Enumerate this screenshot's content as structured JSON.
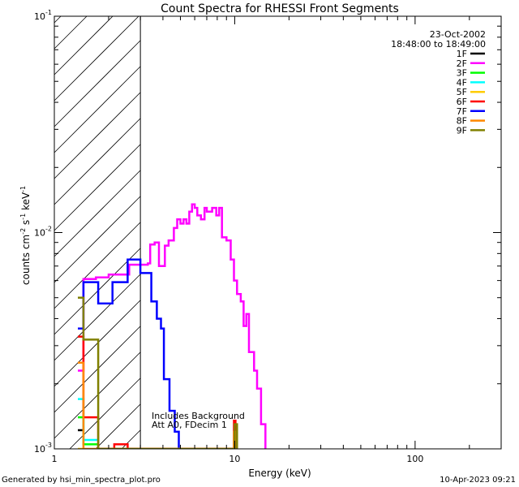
{
  "chart_data": {
    "type": "line",
    "title": "Count Spectra for RHESSI Front Segments",
    "xlabel": "Energy (keV)",
    "ylabel_main": "counts cm",
    "ylabel_sup1": "-2",
    "ylabel_mid": " s",
    "ylabel_sup2": "-1",
    "ylabel_mid2": " keV",
    "ylabel_sup3": "-1",
    "xscale": "log",
    "yscale": "log",
    "xlim": [
      1,
      300
    ],
    "ylim": [
      0.001,
      0.1
    ],
    "x_tick_labels": [
      {
        "value": 1,
        "label": "1"
      },
      {
        "value": 10,
        "label": "10"
      },
      {
        "value": 100,
        "label": "100"
      }
    ],
    "y_tick_labels": [
      {
        "value": 0.1,
        "base": "10",
        "exp": "-1"
      },
      {
        "value": 0.01,
        "base": "10",
        "exp": "-2"
      },
      {
        "value": 0.001,
        "base": "10",
        "exp": "-3"
      }
    ],
    "hatched_region": [
      1,
      3
    ],
    "date": "23-Oct-2002",
    "time_range": "18:48:00 to 18:49:00",
    "annotation_line1": "Includes Background",
    "annotation_line2": "Att A0, FDecim 1",
    "footer_left": "Generated by hsi_min_spectra_plot.pro",
    "footer_right": "10-Apr-2023 09:21",
    "legend": [
      {
        "name": "1F",
        "color": "#000000"
      },
      {
        "name": "2F",
        "color": "#ff00ff"
      },
      {
        "name": "3F",
        "color": "#00ff00"
      },
      {
        "name": "4F",
        "color": "#00ffff"
      },
      {
        "name": "5F",
        "color": "#ffcc00"
      },
      {
        "name": "6F",
        "color": "#ff0000"
      },
      {
        "name": "7F",
        "color": "#0000ff"
      },
      {
        "name": "8F",
        "color": "#ff8800"
      },
      {
        "name": "9F",
        "color": "#808000"
      }
    ],
    "series": [
      {
        "name": "1F",
        "color": "#000000",
        "points": [
          [
            1.35,
            0.00122
          ],
          [
            1.45,
            0.00122
          ]
        ]
      },
      {
        "name": "2F",
        "color": "#ff00ff",
        "points": [
          [
            1.35,
            0.0023
          ],
          [
            1.45,
            0.0023
          ],
          [
            1.45,
            0.0061
          ],
          [
            1.7,
            0.0061
          ],
          [
            1.7,
            0.0062
          ],
          [
            2.0,
            0.0062
          ],
          [
            2.0,
            0.0064
          ],
          [
            2.6,
            0.0064
          ],
          [
            2.6,
            0.0071
          ],
          [
            3.3,
            0.0071
          ],
          [
            3.3,
            0.0072
          ],
          [
            3.4,
            0.0072
          ],
          [
            3.4,
            0.0088
          ],
          [
            3.6,
            0.0088
          ],
          [
            3.6,
            0.009
          ],
          [
            3.8,
            0.009
          ],
          [
            3.8,
            0.007
          ],
          [
            4.1,
            0.007
          ],
          [
            4.1,
            0.0087
          ],
          [
            4.3,
            0.0087
          ],
          [
            4.3,
            0.0092
          ],
          [
            4.6,
            0.0092
          ],
          [
            4.6,
            0.0105
          ],
          [
            4.8,
            0.0105
          ],
          [
            4.8,
            0.0115
          ],
          [
            5.0,
            0.0115
          ],
          [
            5.0,
            0.011
          ],
          [
            5.2,
            0.011
          ],
          [
            5.2,
            0.0115
          ],
          [
            5.4,
            0.0115
          ],
          [
            5.4,
            0.011
          ],
          [
            5.6,
            0.011
          ],
          [
            5.6,
            0.0125
          ],
          [
            5.8,
            0.0125
          ],
          [
            5.8,
            0.0135
          ],
          [
            6.0,
            0.0135
          ],
          [
            6.0,
            0.013
          ],
          [
            6.2,
            0.013
          ],
          [
            6.2,
            0.012
          ],
          [
            6.5,
            0.012
          ],
          [
            6.5,
            0.0115
          ],
          [
            6.8,
            0.0115
          ],
          [
            6.8,
            0.013
          ],
          [
            7.0,
            0.013
          ],
          [
            7.0,
            0.0125
          ],
          [
            7.5,
            0.0125
          ],
          [
            7.5,
            0.013
          ],
          [
            7.9,
            0.013
          ],
          [
            7.9,
            0.012
          ],
          [
            8.2,
            0.012
          ],
          [
            8.2,
            0.013
          ],
          [
            8.5,
            0.013
          ],
          [
            8.5,
            0.0095
          ],
          [
            9.0,
            0.0095
          ],
          [
            9.0,
            0.0092
          ],
          [
            9.5,
            0.0092
          ],
          [
            9.5,
            0.0075
          ],
          [
            9.9,
            0.0075
          ],
          [
            9.9,
            0.006
          ],
          [
            10.3,
            0.006
          ],
          [
            10.3,
            0.0052
          ],
          [
            10.8,
            0.0052
          ],
          [
            10.8,
            0.0048
          ],
          [
            11.2,
            0.0048
          ],
          [
            11.2,
            0.0037
          ],
          [
            11.6,
            0.0037
          ],
          [
            11.6,
            0.0042
          ],
          [
            12.0,
            0.0042
          ],
          [
            12.0,
            0.0028
          ],
          [
            12.8,
            0.0028
          ],
          [
            12.8,
            0.0023
          ],
          [
            13.3,
            0.0023
          ],
          [
            13.3,
            0.0019
          ],
          [
            14.0,
            0.0019
          ],
          [
            14.0,
            0.0013
          ],
          [
            14.8,
            0.0013
          ],
          [
            14.8,
            0.001
          ]
        ]
      },
      {
        "name": "3F",
        "color": "#00ff00",
        "points": [
          [
            1.35,
            0.0014
          ],
          [
            1.45,
            0.0014
          ],
          [
            1.45,
            0.00105
          ],
          [
            1.75,
            0.00105
          ]
        ]
      },
      {
        "name": "4F",
        "color": "#00ffff",
        "points": [
          [
            1.35,
            0.0017
          ],
          [
            1.45,
            0.0017
          ],
          [
            1.45,
            0.0011
          ],
          [
            1.75,
            0.0011
          ]
        ]
      },
      {
        "name": "5F",
        "color": "#ffcc00",
        "points": [
          [
            1.35,
            0.001
          ],
          [
            1.45,
            0.001
          ]
        ]
      },
      {
        "name": "6F",
        "color": "#ff0000",
        "points": [
          [
            1.35,
            0.0033
          ],
          [
            1.45,
            0.0033
          ],
          [
            1.45,
            0.0014
          ],
          [
            1.75,
            0.0014
          ],
          [
            1.75,
            0.001
          ],
          [
            2.15,
            0.001
          ],
          [
            2.15,
            0.00105
          ],
          [
            2.55,
            0.00105
          ],
          [
            2.55,
            0.001
          ],
          [
            9.9,
            0.001
          ],
          [
            9.9,
            0.00135
          ],
          [
            10.1,
            0.00135
          ],
          [
            10.1,
            0.001
          ]
        ]
      },
      {
        "name": "7F",
        "color": "#0000ff",
        "points": [
          [
            1.35,
            0.0036
          ],
          [
            1.45,
            0.0036
          ],
          [
            1.45,
            0.0059
          ],
          [
            1.75,
            0.0059
          ],
          [
            1.75,
            0.0047
          ],
          [
            2.1,
            0.0047
          ],
          [
            2.1,
            0.0059
          ],
          [
            2.55,
            0.0059
          ],
          [
            2.55,
            0.0075
          ],
          [
            3.0,
            0.0075
          ],
          [
            3.0,
            0.0065
          ],
          [
            3.45,
            0.0065
          ],
          [
            3.45,
            0.0048
          ],
          [
            3.7,
            0.0048
          ],
          [
            3.7,
            0.004
          ],
          [
            3.9,
            0.004
          ],
          [
            3.9,
            0.0036
          ],
          [
            4.05,
            0.0036
          ],
          [
            4.05,
            0.0021
          ],
          [
            4.35,
            0.0021
          ],
          [
            4.35,
            0.0015
          ],
          [
            4.65,
            0.0015
          ],
          [
            4.65,
            0.0012
          ],
          [
            4.9,
            0.0012
          ],
          [
            4.9,
            0.001
          ]
        ]
      },
      {
        "name": "8F",
        "color": "#ff8800",
        "points": [
          [
            1.35,
            0.0025
          ],
          [
            1.45,
            0.0025
          ],
          [
            1.45,
            0.001
          ],
          [
            9.9,
            0.001
          ],
          [
            9.9,
            0.0012
          ],
          [
            10.2,
            0.0012
          ],
          [
            10.2,
            0.001
          ]
        ]
      },
      {
        "name": "9F",
        "color": "#808000",
        "points": [
          [
            1.35,
            0.005
          ],
          [
            1.45,
            0.005
          ],
          [
            1.45,
            0.0032
          ],
          [
            1.75,
            0.0032
          ],
          [
            1.75,
            0.001
          ],
          [
            10.0,
            0.001
          ],
          [
            10.0,
            0.0013
          ],
          [
            10.3,
            0.0013
          ],
          [
            10.3,
            0.001
          ]
        ]
      }
    ]
  }
}
